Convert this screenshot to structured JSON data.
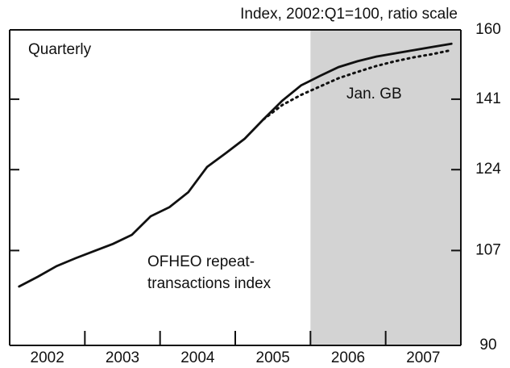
{
  "chart_data": {
    "type": "line",
    "axis_title": "Index, 2002:Q1=100, ratio scale",
    "annotations": [
      "Quarterly"
    ],
    "log_scale": true,
    "x": [
      2002.125,
      2002.375,
      2002.625,
      2002.875,
      2003.125,
      2003.375,
      2003.625,
      2003.875,
      2004.125,
      2004.375,
      2004.625,
      2004.875,
      2005.125,
      2005.375,
      2005.625,
      2005.875,
      2006.125,
      2006.375,
      2006.625,
      2006.875,
      2007.125,
      2007.375,
      2007.625,
      2007.875
    ],
    "series": [
      {
        "label_lines": [
          "OFHEO repeat-",
          "transactions index"
        ],
        "color": "#111111",
        "dash": false,
        "values": [
          100.2,
          102.0,
          104.0,
          105.5,
          106.9,
          108.3,
          110.1,
          113.9,
          115.8,
          119.0,
          124.6,
          127.8,
          131.2,
          135.9,
          140.6,
          144.6,
          147.1,
          149.5,
          151.1,
          152.4,
          153.3,
          154.2,
          155.1,
          156.0
        ]
      },
      {
        "label_lines": [
          "Jan. GB"
        ],
        "color": "#111111",
        "dash": true,
        "values": [
          null,
          null,
          null,
          null,
          null,
          null,
          null,
          null,
          null,
          null,
          null,
          null,
          null,
          135.9,
          139.5,
          142.1,
          144.3,
          146.5,
          148.2,
          149.8,
          151.1,
          152.2,
          153.1,
          154.2
        ]
      }
    ],
    "xlim": [
      2002,
      2008
    ],
    "xticks": [
      {
        "value": 2002.5,
        "label": "2002"
      },
      {
        "value": 2003.5,
        "label": "2003"
      },
      {
        "value": 2004.5,
        "label": "2004"
      },
      {
        "value": 2005.5,
        "label": "2005"
      },
      {
        "value": 2006.5,
        "label": "2006"
      },
      {
        "value": 2007.5,
        "label": "2007"
      }
    ],
    "xminorticks": [
      2003,
      2004,
      2005,
      2006,
      2007
    ],
    "shaded_xrange": [
      2006,
      2008
    ],
    "shade_color": "#d3d3d3",
    "ylim": [
      90,
      160
    ],
    "yticks": [
      90,
      107,
      124,
      141,
      160
    ]
  }
}
